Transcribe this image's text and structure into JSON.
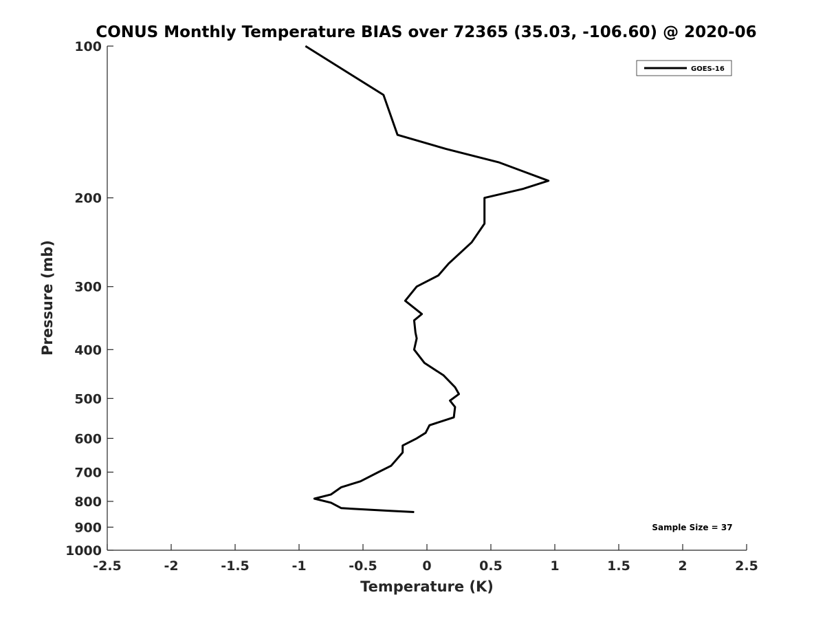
{
  "chart_data": {
    "type": "line",
    "title": "CONUS Monthly Temperature BIAS over 72365 (35.03, -106.60) @ 2020-06",
    "xlabel": "Temperature (K)",
    "ylabel": "Pressure (mb)",
    "xlim": [
      -2.5,
      2.5
    ],
    "ylim": [
      100,
      1000
    ],
    "y_scale": "log",
    "y_reversed": true,
    "grid": false,
    "legend_position": "top-right",
    "x_ticks": [
      -2.5,
      -2,
      -1.5,
      -1,
      -0.5,
      0,
      0.5,
      1,
      1.5,
      2,
      2.5
    ],
    "x_tick_labels": [
      "-2.5",
      "-2",
      "-1.5",
      "-1",
      "-0.5",
      "0",
      "0.5",
      "1",
      "1.5",
      "2",
      "2.5"
    ],
    "y_ticks": [
      100,
      200,
      300,
      400,
      500,
      600,
      700,
      800,
      900,
      1000
    ],
    "y_tick_labels": [
      "100",
      "200",
      "300",
      "400",
      "500",
      "600",
      "700",
      "800",
      "900",
      "1000"
    ],
    "series": [
      {
        "name": "GOES-16",
        "color": "#000000",
        "points": [
          {
            "x": -0.95,
            "y": 100
          },
          {
            "x": -0.34,
            "y": 125
          },
          {
            "x": -0.23,
            "y": 150
          },
          {
            "x": 0.15,
            "y": 160
          },
          {
            "x": 0.56,
            "y": 170
          },
          {
            "x": 0.95,
            "y": 185
          },
          {
            "x": 0.75,
            "y": 192
          },
          {
            "x": 0.45,
            "y": 200
          },
          {
            "x": 0.45,
            "y": 225
          },
          {
            "x": 0.35,
            "y": 245
          },
          {
            "x": 0.17,
            "y": 270
          },
          {
            "x": 0.09,
            "y": 285
          },
          {
            "x": -0.08,
            "y": 300
          },
          {
            "x": -0.17,
            "y": 320
          },
          {
            "x": -0.04,
            "y": 340
          },
          {
            "x": -0.1,
            "y": 350
          },
          {
            "x": -0.09,
            "y": 370
          },
          {
            "x": -0.08,
            "y": 380
          },
          {
            "x": -0.1,
            "y": 400
          },
          {
            "x": -0.02,
            "y": 425
          },
          {
            "x": 0.13,
            "y": 450
          },
          {
            "x": 0.22,
            "y": 475
          },
          {
            "x": 0.25,
            "y": 490
          },
          {
            "x": 0.18,
            "y": 505
          },
          {
            "x": 0.22,
            "y": 520
          },
          {
            "x": 0.21,
            "y": 545
          },
          {
            "x": 0.02,
            "y": 565
          },
          {
            "x": -0.01,
            "y": 585
          },
          {
            "x": -0.08,
            "y": 600
          },
          {
            "x": -0.19,
            "y": 620
          },
          {
            "x": -0.19,
            "y": 640
          },
          {
            "x": -0.28,
            "y": 680
          },
          {
            "x": -0.38,
            "y": 700
          },
          {
            "x": -0.52,
            "y": 730
          },
          {
            "x": -0.67,
            "y": 750
          },
          {
            "x": -0.75,
            "y": 775
          },
          {
            "x": -0.88,
            "y": 790
          },
          {
            "x": -0.75,
            "y": 805
          },
          {
            "x": -0.67,
            "y": 825
          },
          {
            "x": -0.3,
            "y": 835
          },
          {
            "x": -0.1,
            "y": 840
          }
        ]
      }
    ],
    "annotation": "Sample Size = 37"
  },
  "colors": {
    "line": "#000000",
    "axis": "#262626",
    "background": "#ffffff"
  }
}
